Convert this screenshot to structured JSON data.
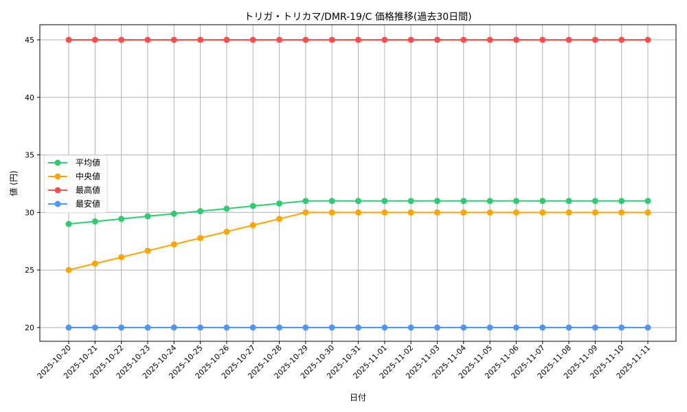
{
  "chart_data": {
    "type": "line",
    "title": "トリガ・トリカマ/DMR-19/C 価格推移(過去30日間)",
    "xlabel": "日付",
    "ylabel": "値 (円)",
    "ylim": [
      18.75,
      46.25
    ],
    "yticks": [
      20,
      25,
      30,
      35,
      40,
      45
    ],
    "grid": true,
    "legend_position": "center left",
    "x": [
      "2025-10-20",
      "2025-10-21",
      "2025-10-22",
      "2025-10-23",
      "2025-10-24",
      "2025-10-25",
      "2025-10-26",
      "2025-10-27",
      "2025-10-28",
      "2025-10-29",
      "2025-10-30",
      "2025-10-31",
      "2025-11-01",
      "2025-11-02",
      "2025-11-03",
      "2025-11-04",
      "2025-11-05",
      "2025-11-06",
      "2025-11-07",
      "2025-11-08",
      "2025-11-09",
      "2025-11-10",
      "2025-11-11"
    ],
    "series": [
      {
        "name": "平均値",
        "color": "#2ecc71",
        "values": [
          29.0,
          29.22,
          29.44,
          29.67,
          29.89,
          30.11,
          30.33,
          30.56,
          30.78,
          31,
          31,
          31,
          31,
          31,
          31,
          31,
          31,
          31,
          31,
          31,
          31,
          31,
          31
        ]
      },
      {
        "name": "中央値",
        "color": "#ffa500",
        "values": [
          25.0,
          25.56,
          26.11,
          26.67,
          27.22,
          27.78,
          28.33,
          28.89,
          29.44,
          30,
          30,
          30,
          30,
          30,
          30,
          30,
          30,
          30,
          30,
          30,
          30,
          30,
          30
        ]
      },
      {
        "name": "最高値",
        "color": "#ff4d4d",
        "values": [
          45,
          45,
          45,
          45,
          45,
          45,
          45,
          45,
          45,
          45,
          45,
          45,
          45,
          45,
          45,
          45,
          45,
          45,
          45,
          45,
          45,
          45,
          45
        ]
      },
      {
        "name": "最安値",
        "color": "#4d96ff",
        "values": [
          20,
          20,
          20,
          20,
          20,
          20,
          20,
          20,
          20,
          20,
          20,
          20,
          20,
          20,
          20,
          20,
          20,
          20,
          20,
          20,
          20,
          20,
          20
        ]
      }
    ]
  }
}
